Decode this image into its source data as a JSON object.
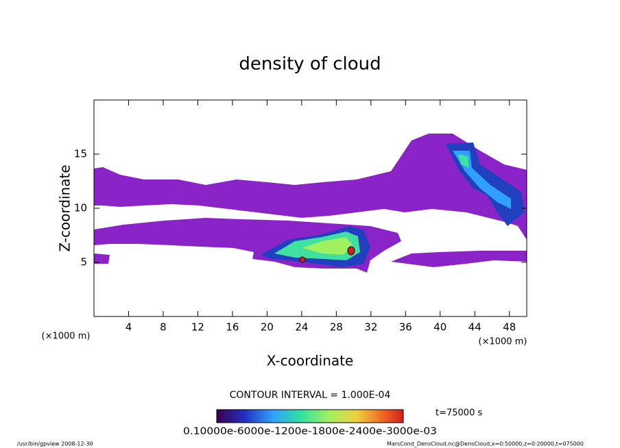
{
  "chart_data": {
    "type": "contour",
    "title": "density of cloud",
    "x_label": "X-coordinate",
    "y_label": "Z-coordinate",
    "x_unit": "(×1000 m)",
    "y_unit": "(×1000 m)",
    "xlim": [
      0,
      50
    ],
    "xticks": [
      4,
      8,
      12,
      16,
      20,
      24,
      28,
      32,
      36,
      40,
      44,
      48
    ],
    "ylim": [
      0,
      20
    ],
    "yticks": [
      5,
      10,
      15
    ],
    "contour_interval": "CONTOUR INTERVAL = 1.000E-04",
    "time_label": "t=75000 s",
    "colorbar_label": "0.10000e-6000e-1200e-1800e-2400e-3000e-03",
    "footer_left": "/usr/bin/gpview   2008-12-30",
    "footer_right": "MarsCond_DensCloud.nc@DensCloud,x=0:50000,z=0:20000,t=075000"
  }
}
